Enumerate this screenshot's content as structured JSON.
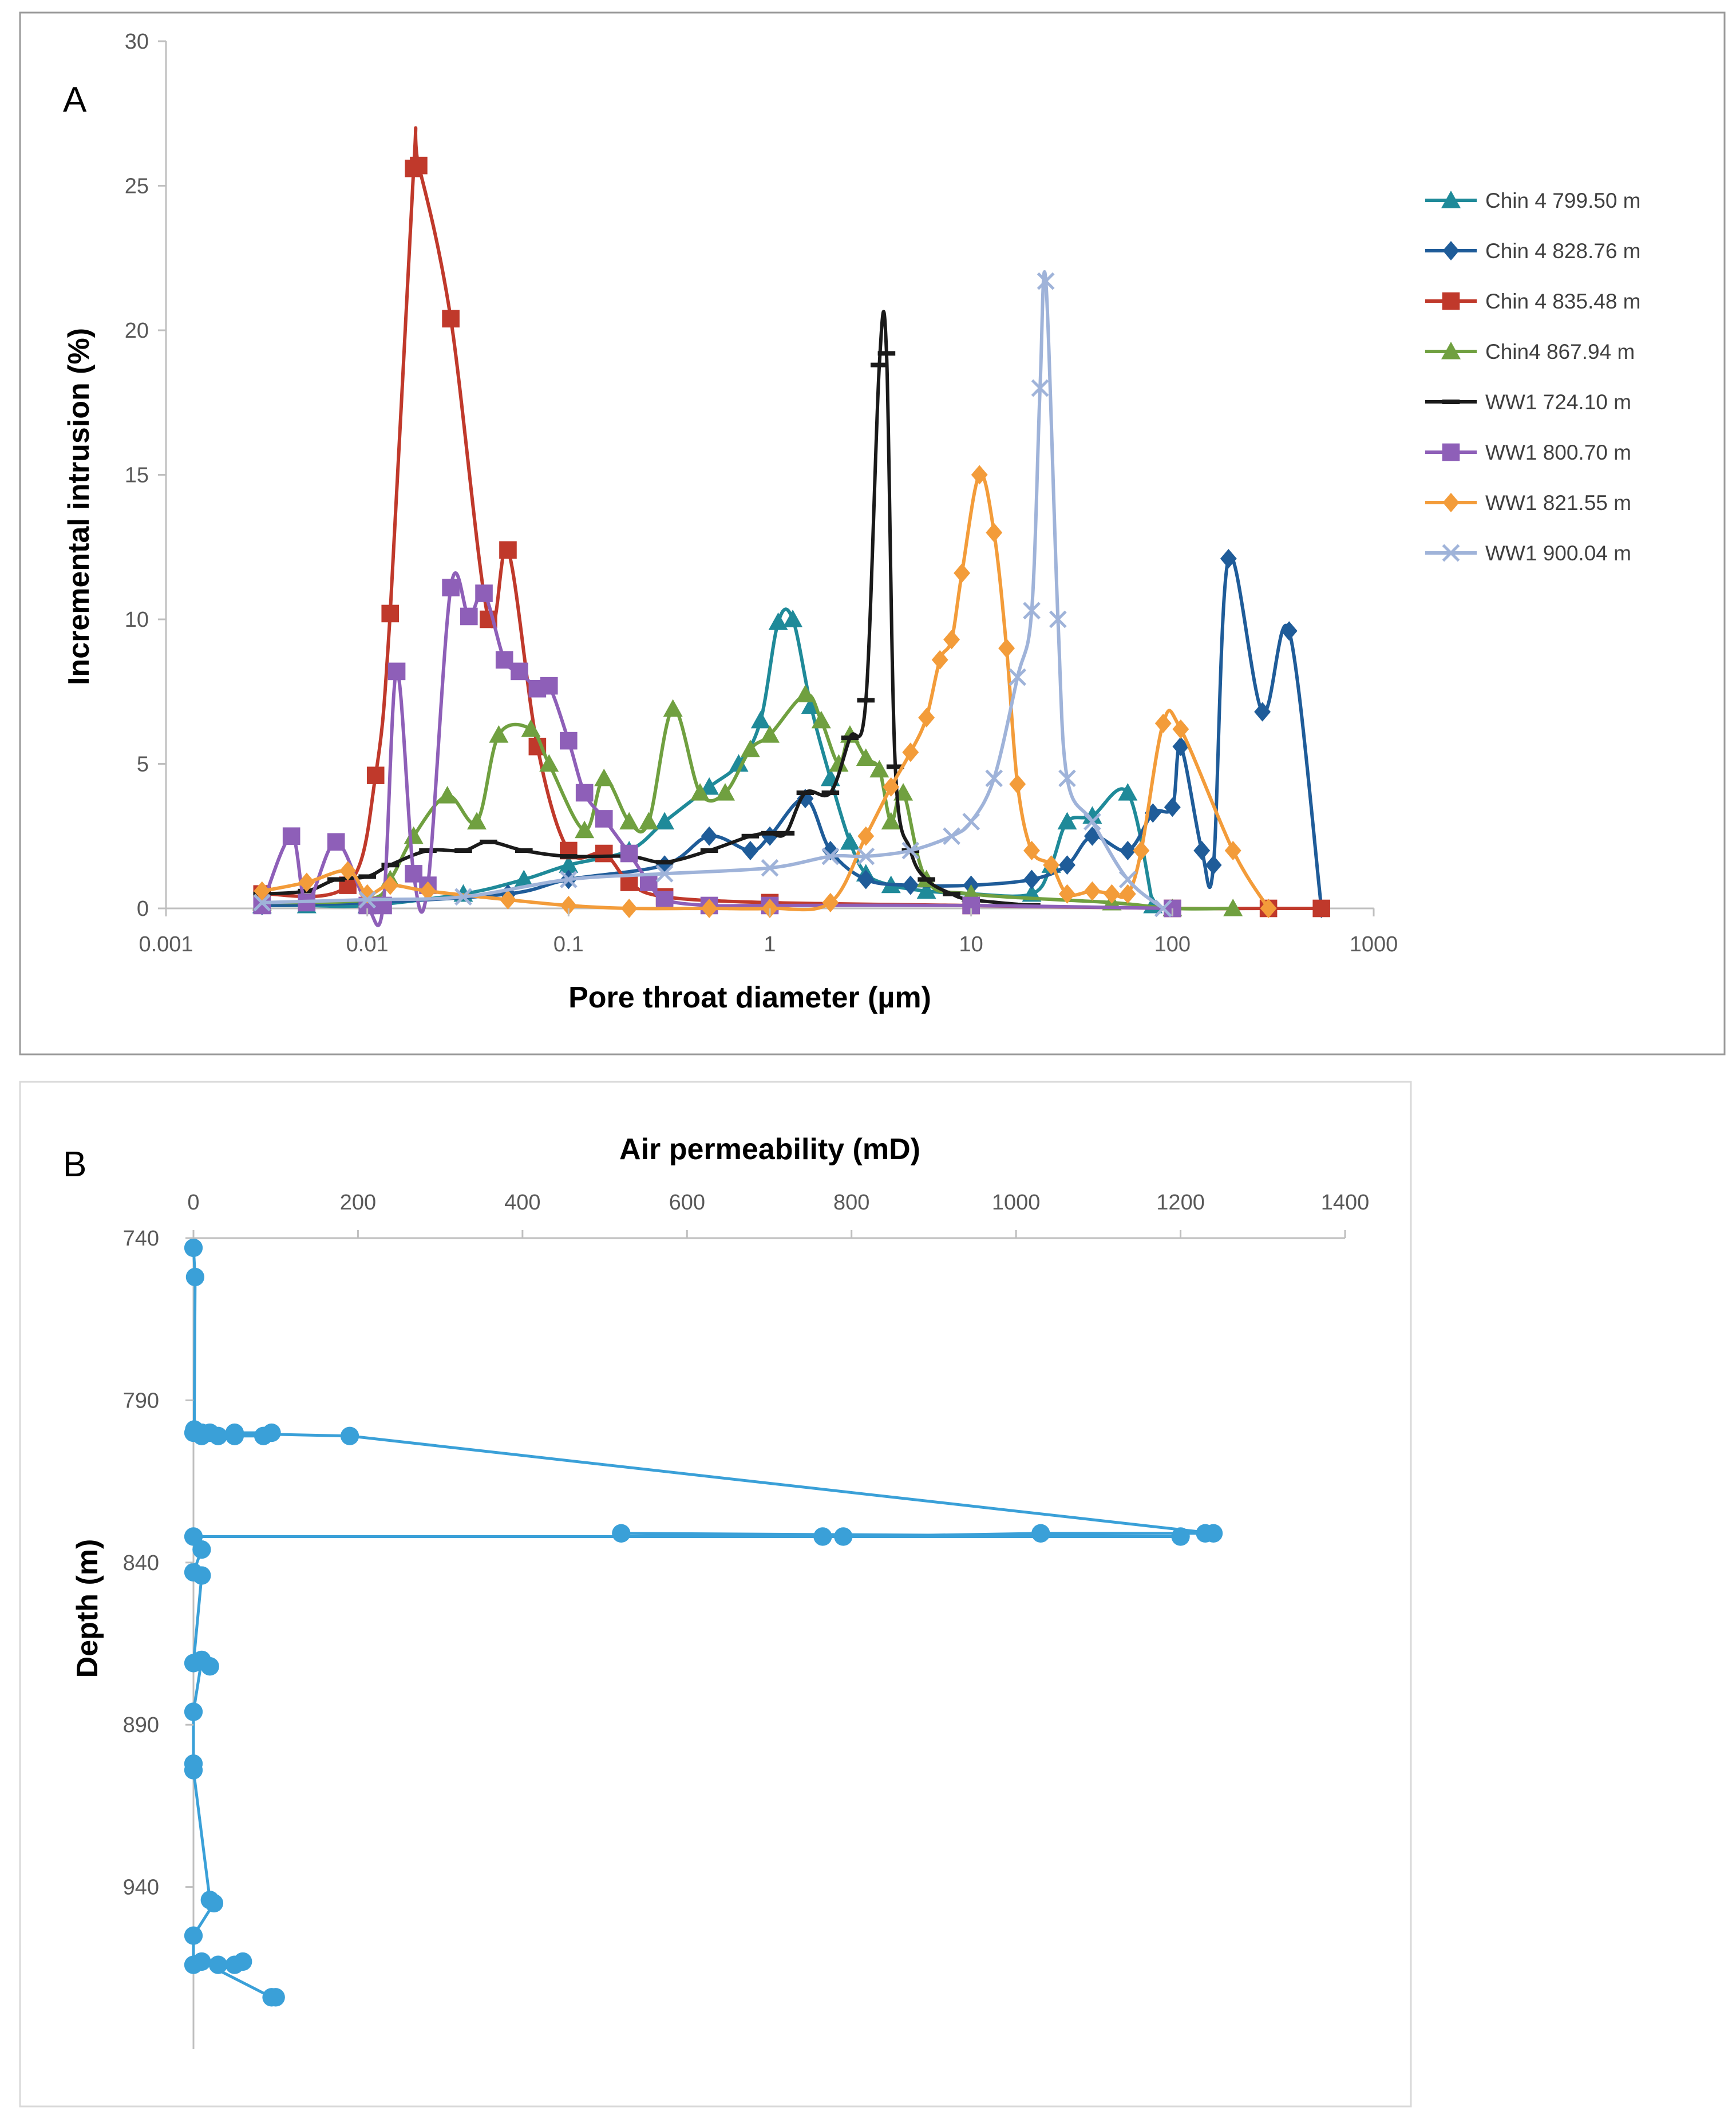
{
  "chart_data": [
    {
      "panel_label": "A",
      "type": "line",
      "xscale": "log",
      "xlabel": "Pore throat diameter (µm)",
      "ylabel": "Incremental intrusion (%)",
      "xlim": [
        0.001,
        1000
      ],
      "ylim": [
        0,
        30
      ],
      "xticks": [
        "0.001",
        "0.01",
        "0.1",
        "1",
        "10",
        "100",
        "1000"
      ],
      "yticks": [
        "0",
        "5",
        "10",
        "15",
        "20",
        "25",
        "30"
      ],
      "legend_position": "right",
      "series": [
        {
          "name": "Chin 4 799.50 m",
          "color": "#1f8a99",
          "marker": "triangle",
          "x": [
            0.003,
            0.005,
            0.01,
            0.03,
            0.06,
            0.1,
            0.2,
            0.3,
            0.5,
            0.7,
            0.9,
            1.1,
            1.3,
            1.6,
            2.0,
            2.5,
            3.0,
            4.0,
            6.0,
            10,
            20,
            25,
            30,
            40,
            60,
            80
          ],
          "y": [
            0.1,
            0.1,
            0.1,
            0.5,
            1.0,
            1.5,
            2.0,
            3.0,
            4.2,
            5.0,
            6.5,
            9.9,
            10.0,
            7.0,
            4.5,
            2.3,
            1.2,
            0.8,
            0.6,
            0.5,
            0.5,
            1.5,
            3.0,
            3.2,
            4.0,
            0.1
          ]
        },
        {
          "name": "Chin 4 828.76 m",
          "color": "#1f5c99",
          "marker": "diamond",
          "x": [
            0.003,
            0.01,
            0.05,
            0.1,
            0.3,
            0.5,
            0.8,
            1.0,
            1.5,
            2.0,
            3.0,
            5.0,
            10,
            20,
            30,
            40,
            60,
            80,
            100,
            110,
            140,
            160,
            190,
            280,
            380,
            550
          ],
          "y": [
            0.1,
            0.2,
            0.5,
            1.0,
            1.5,
            2.5,
            2.0,
            2.5,
            3.8,
            2.0,
            1.0,
            0.8,
            0.8,
            1.0,
            1.5,
            2.5,
            2.0,
            3.3,
            3.5,
            5.6,
            2.0,
            1.5,
            12.1,
            6.8,
            9.6,
            0.0
          ]
        },
        {
          "name": "Chin 4 835.48 m",
          "color": "#c0392b",
          "marker": "square",
          "x": [
            0.003,
            0.008,
            0.011,
            0.013,
            0.017,
            0.018,
            0.026,
            0.04,
            0.05,
            0.07,
            0.1,
            0.15,
            0.2,
            0.3,
            1,
            10,
            100,
            300,
            550
          ],
          "y": [
            0.5,
            0.8,
            4.6,
            10.2,
            25.6,
            25.7,
            20.4,
            10.0,
            12.4,
            5.6,
            2.0,
            1.9,
            0.9,
            0.4,
            0.2,
            0.1,
            0.0,
            0.0,
            0.0
          ]
        },
        {
          "name": "Chin4 867.94 m",
          "color": "#70a040",
          "marker": "triangle",
          "x": [
            0.003,
            0.01,
            0.013,
            0.017,
            0.025,
            0.035,
            0.045,
            0.065,
            0.08,
            0.12,
            0.15,
            0.2,
            0.25,
            0.33,
            0.45,
            0.6,
            0.8,
            1.0,
            1.5,
            1.8,
            2.2,
            2.5,
            3.0,
            3.5,
            4.0,
            4.6,
            6.0,
            10,
            50,
            100,
            200
          ],
          "y": [
            0.2,
            0.3,
            1.0,
            2.5,
            3.9,
            3.0,
            6.0,
            6.2,
            5.0,
            2.7,
            4.5,
            3.0,
            3.0,
            6.9,
            4.0,
            4.0,
            5.5,
            6.0,
            7.4,
            6.5,
            5.0,
            6.0,
            5.2,
            4.8,
            3.0,
            4.0,
            1.0,
            0.5,
            0.2,
            0.0,
            0.0
          ]
        },
        {
          "name": "WW1 724.10 m",
          "color": "#1a1a1a",
          "marker": "dash",
          "x": [
            0.003,
            0.005,
            0.007,
            0.01,
            0.013,
            0.02,
            0.03,
            0.04,
            0.06,
            0.1,
            0.2,
            0.3,
            0.5,
            0.8,
            1.0,
            1.2,
            1.5,
            2.0,
            2.5,
            3.0,
            3.5,
            3.8,
            4.2,
            5.0,
            6.0,
            8.0,
            10,
            20
          ],
          "y": [
            0.5,
            0.6,
            1.0,
            1.1,
            1.5,
            2.0,
            2.0,
            2.3,
            2.0,
            1.8,
            1.8,
            1.6,
            2.0,
            2.5,
            2.6,
            2.6,
            4.0,
            4.0,
            5.9,
            7.2,
            18.8,
            19.2,
            4.9,
            2.0,
            1.0,
            0.5,
            0.3,
            0.1
          ]
        },
        {
          "name": "WW1 800.70 m",
          "color": "#8e5fb8",
          "marker": "square",
          "x": [
            0.003,
            0.0042,
            0.005,
            0.007,
            0.01,
            0.012,
            0.014,
            0.017,
            0.02,
            0.026,
            0.032,
            0.038,
            0.048,
            0.057,
            0.07,
            0.08,
            0.1,
            0.12,
            0.15,
            0.2,
            0.25,
            0.3,
            0.5,
            1,
            10,
            100
          ],
          "y": [
            0.1,
            2.5,
            0.2,
            2.3,
            0.1,
            0.1,
            8.2,
            1.2,
            0.8,
            11.1,
            10.1,
            10.9,
            8.6,
            8.2,
            7.6,
            7.7,
            5.8,
            4.0,
            3.1,
            1.9,
            0.9,
            0.3,
            0.1,
            0.1,
            0.1,
            0.0
          ]
        },
        {
          "name": "WW1 821.55 m",
          "color": "#f39c3a",
          "marker": "diamond",
          "x": [
            0.003,
            0.005,
            0.008,
            0.01,
            0.013,
            0.02,
            0.05,
            0.1,
            0.2,
            0.5,
            1.0,
            2.0,
            3.0,
            4.0,
            5.0,
            6.0,
            7.0,
            8.0,
            9.0,
            11.0,
            13.0,
            15.0,
            17.0,
            20.0,
            25.0,
            30.0,
            40.0,
            50.0,
            60.0,
            70.0,
            90.0,
            110.0,
            200.0,
            300.0
          ],
          "y": [
            0.6,
            0.9,
            1.3,
            0.5,
            0.8,
            0.6,
            0.3,
            0.1,
            0.0,
            0.0,
            0.0,
            0.2,
            2.5,
            4.2,
            5.4,
            6.6,
            8.6,
            9.3,
            11.6,
            15.0,
            13.0,
            9.0,
            4.3,
            2.0,
            1.5,
            0.5,
            0.6,
            0.5,
            0.5,
            2.0,
            6.4,
            6.2,
            2.0,
            0.0
          ]
        },
        {
          "name": "WW1 900.04 m",
          "color": "#9fb3d9",
          "marker": "x",
          "x": [
            0.003,
            0.01,
            0.03,
            0.1,
            0.3,
            1.0,
            2.0,
            3.0,
            5.0,
            8.0,
            10.0,
            13.0,
            17.0,
            20.0,
            22.0,
            23.5,
            27.0,
            30.0,
            40.0,
            60.0,
            90.0
          ],
          "y": [
            0.2,
            0.3,
            0.4,
            1.0,
            1.2,
            1.4,
            1.8,
            1.8,
            2.0,
            2.5,
            3.0,
            4.5,
            8.0,
            10.3,
            18.0,
            21.7,
            10.0,
            4.5,
            3.0,
            1.0,
            0.0
          ]
        }
      ]
    },
    {
      "panel_label": "B",
      "type": "line",
      "xlabel": "Air permeability (mD)",
      "ylabel": "Depth (m)",
      "xlim": [
        0,
        1400
      ],
      "ylim": [
        740,
        990
      ],
      "y_inverted": true,
      "xticks": [
        "0",
        "200",
        "400",
        "600",
        "800",
        "1000",
        "1200",
        "1400"
      ],
      "yticks": [
        "740",
        "790",
        "840",
        "890",
        "940"
      ],
      "series": [
        {
          "name": "Air permeability",
          "color": "#3aa0d8",
          "marker": "circle",
          "x": [
            0,
            2,
            1,
            0,
            5,
            10,
            20,
            30,
            50,
            95,
            85,
            50,
            10,
            190,
            1240,
            1230,
            1030,
            790,
            765,
            520,
            1200,
            0,
            10,
            0,
            10,
            0,
            20,
            10,
            0,
            0,
            0,
            20,
            25,
            0,
            0,
            30,
            50,
            60,
            10,
            95,
            100
          ],
          "y": [
            743,
            752,
            799,
            800,
            800,
            801,
            800,
            801,
            800,
            800,
            801,
            801,
            800,
            801,
            831,
            831,
            831,
            832,
            832,
            831,
            832,
            832,
            836,
            843,
            844,
            871,
            872,
            870,
            886,
            902,
            904,
            944,
            945,
            955,
            964,
            964,
            964,
            963,
            963,
            974,
            974
          ]
        }
      ]
    }
  ]
}
